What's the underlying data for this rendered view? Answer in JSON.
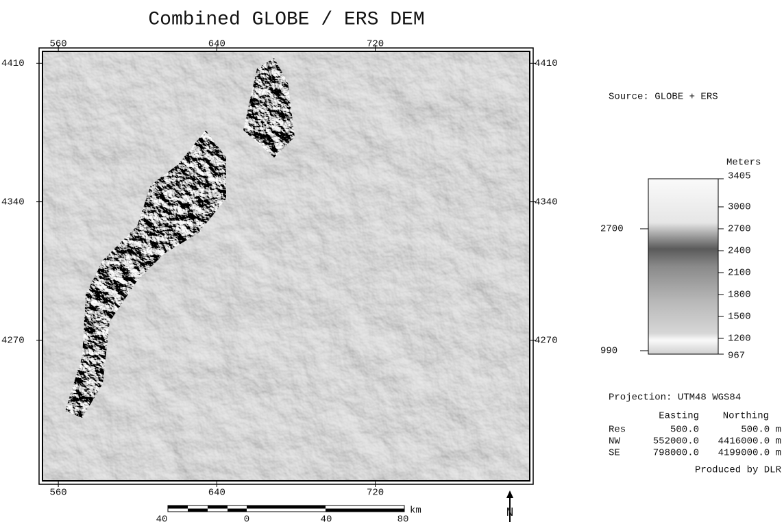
{
  "title": "Combined GLOBE / ERS DEM",
  "map": {
    "xlim": [
      552,
      798
    ],
    "ylim": [
      4199,
      4416
    ],
    "xticks": [
      560,
      640,
      720
    ],
    "yticks": [
      4410,
      4340,
      4270
    ]
  },
  "source": "Source: GLOBE + ERS",
  "legend": {
    "unit": "Meters",
    "max": "3405",
    "min": "967",
    "ticks": [
      "3000",
      "2700",
      "2400",
      "2100",
      "1800",
      "1500",
      "1200"
    ],
    "marker_high": "2700",
    "marker_low": "990"
  },
  "projection": "Projection: UTM48 WGS84",
  "info_table": {
    "header": [
      "Easting",
      "Northing"
    ],
    "rows": [
      [
        "Res",
        "500.0",
        "500.0 m"
      ],
      [
        "NW",
        "552000.0",
        "4416000.0 m"
      ],
      [
        "SE",
        "798000.0",
        "4199000.0 m"
      ]
    ]
  },
  "credit": "Produced by DLR",
  "scale_bar": {
    "labels": [
      "40",
      "0",
      "40",
      "80"
    ],
    "unit": "km"
  },
  "north": "N"
}
